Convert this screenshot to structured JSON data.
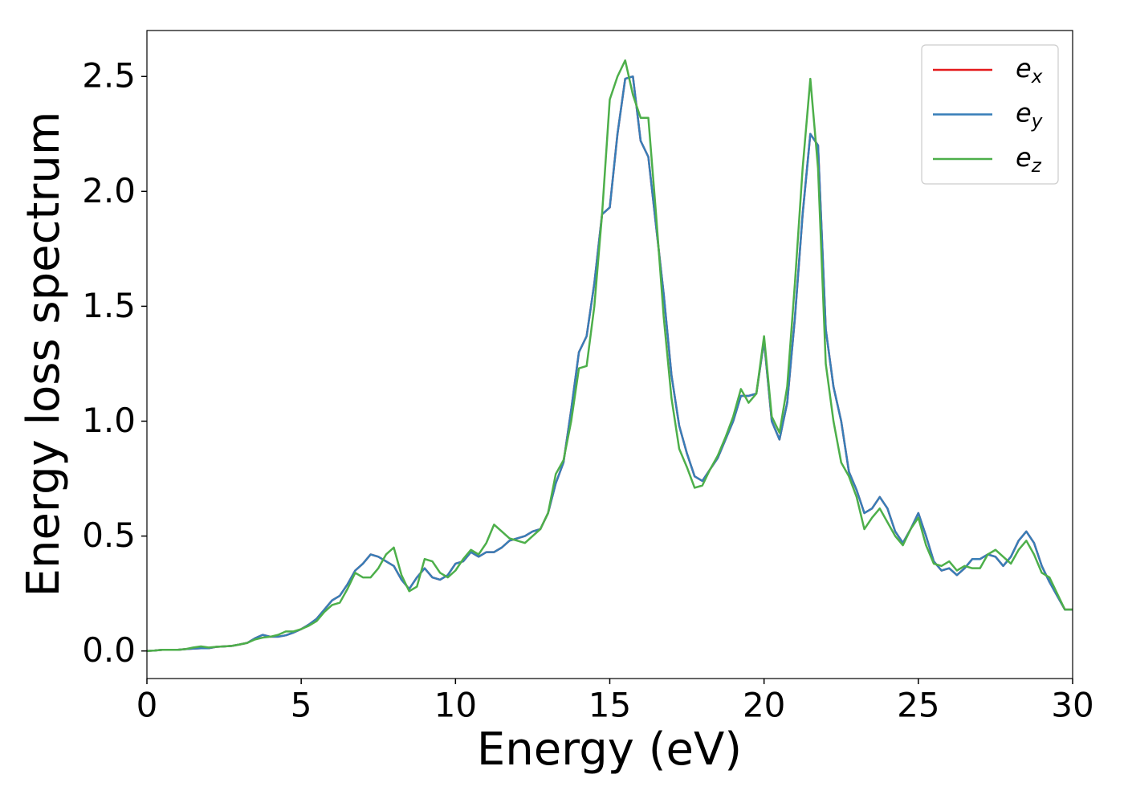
{
  "chart_data": {
    "type": "line",
    "xlabel": "Energy (eV)",
    "ylabel": "Energy loss spectrum",
    "x": [
      0,
      0.25,
      0.5,
      0.75,
      1,
      1.25,
      1.5,
      1.75,
      2,
      2.25,
      2.5,
      2.75,
      3,
      3.25,
      3.5,
      3.75,
      4,
      4.25,
      4.5,
      4.75,
      5,
      5.25,
      5.5,
      5.75,
      6,
      6.25,
      6.5,
      6.75,
      7,
      7.25,
      7.5,
      7.75,
      8,
      8.25,
      8.5,
      8.75,
      9,
      9.25,
      9.5,
      9.75,
      10,
      10.25,
      10.5,
      10.75,
      11,
      11.25,
      11.5,
      11.75,
      12,
      12.25,
      12.5,
      12.75,
      13,
      13.25,
      13.5,
      13.75,
      14,
      14.25,
      14.5,
      14.75,
      15,
      15.25,
      15.5,
      15.75,
      16,
      16.25,
      16.5,
      16.75,
      17,
      17.25,
      17.5,
      17.75,
      18,
      18.25,
      18.5,
      18.75,
      19,
      19.25,
      19.5,
      19.75,
      20,
      20.25,
      20.5,
      20.75,
      21,
      21.25,
      21.5,
      21.75,
      22,
      22.25,
      22.5,
      22.75,
      23,
      23.25,
      23.5,
      23.75,
      24,
      24.25,
      24.5,
      24.75,
      25,
      25.25,
      25.5,
      25.75,
      26,
      26.25,
      26.5,
      26.75,
      27,
      27.25,
      27.5,
      27.75,
      28,
      28.25,
      28.5,
      28.75,
      29,
      29.25,
      29.5,
      29.75,
      30
    ],
    "series": [
      {
        "name": "ex",
        "color": "#e41a1c",
        "values": [
          0,
          0.002,
          0.005,
          0.005,
          0.005,
          0.008,
          0.01,
          0.012,
          0.012,
          0.018,
          0.02,
          0.022,
          0.028,
          0.035,
          0.055,
          0.07,
          0.062,
          0.062,
          0.068,
          0.08,
          0.095,
          0.115,
          0.14,
          0.18,
          0.22,
          0.24,
          0.29,
          0.35,
          0.38,
          0.42,
          0.41,
          0.39,
          0.37,
          0.31,
          0.27,
          0.32,
          0.36,
          0.32,
          0.31,
          0.33,
          0.38,
          0.39,
          0.43,
          0.41,
          0.43,
          0.43,
          0.45,
          0.48,
          0.49,
          0.5,
          0.52,
          0.53,
          0.6,
          0.73,
          0.82,
          1.05,
          1.3,
          1.37,
          1.6,
          1.9,
          1.93,
          2.25,
          2.49,
          2.5,
          2.22,
          2.15,
          1.85,
          1.55,
          1.2,
          0.98,
          0.86,
          0.76,
          0.74,
          0.79,
          0.84,
          0.92,
          1.0,
          1.11,
          1.11,
          1.12,
          1.35,
          1.0,
          0.92,
          1.08,
          1.45,
          1.9,
          2.25,
          2.2,
          1.4,
          1.15,
          1.0,
          0.78,
          0.7,
          0.6,
          0.62,
          0.67,
          0.62,
          0.52,
          0.47,
          0.53,
          0.6,
          0.5,
          0.39,
          0.35,
          0.36,
          0.33,
          0.36,
          0.4,
          0.4,
          0.42,
          0.41,
          0.37,
          0.41,
          0.48,
          0.52,
          0.47,
          0.37,
          0.3,
          0.24,
          0.18,
          0.18
        ]
      },
      {
        "name": "ey",
        "color": "#377eb8",
        "values": [
          0,
          0.002,
          0.005,
          0.005,
          0.005,
          0.008,
          0.01,
          0.012,
          0.012,
          0.018,
          0.02,
          0.022,
          0.028,
          0.035,
          0.055,
          0.07,
          0.062,
          0.062,
          0.068,
          0.08,
          0.095,
          0.115,
          0.14,
          0.18,
          0.22,
          0.24,
          0.29,
          0.35,
          0.38,
          0.42,
          0.41,
          0.39,
          0.37,
          0.31,
          0.27,
          0.32,
          0.36,
          0.32,
          0.31,
          0.33,
          0.38,
          0.39,
          0.43,
          0.41,
          0.43,
          0.43,
          0.45,
          0.48,
          0.49,
          0.5,
          0.52,
          0.53,
          0.6,
          0.73,
          0.82,
          1.05,
          1.3,
          1.37,
          1.6,
          1.9,
          1.93,
          2.25,
          2.49,
          2.5,
          2.22,
          2.15,
          1.85,
          1.55,
          1.2,
          0.98,
          0.86,
          0.76,
          0.74,
          0.79,
          0.84,
          0.92,
          1.0,
          1.11,
          1.11,
          1.12,
          1.35,
          1.0,
          0.92,
          1.08,
          1.45,
          1.9,
          2.25,
          2.2,
          1.4,
          1.15,
          1.0,
          0.78,
          0.7,
          0.6,
          0.62,
          0.67,
          0.62,
          0.52,
          0.47,
          0.53,
          0.6,
          0.5,
          0.39,
          0.35,
          0.36,
          0.33,
          0.36,
          0.4,
          0.4,
          0.42,
          0.41,
          0.37,
          0.41,
          0.48,
          0.52,
          0.47,
          0.37,
          0.3,
          0.24,
          0.18,
          0.18
        ]
      },
      {
        "name": "ez",
        "color": "#4daf4a",
        "values": [
          0,
          0.002,
          0.005,
          0.005,
          0.005,
          0.008,
          0.015,
          0.02,
          0.015,
          0.018,
          0.02,
          0.022,
          0.028,
          0.035,
          0.05,
          0.058,
          0.062,
          0.07,
          0.085,
          0.085,
          0.095,
          0.11,
          0.13,
          0.17,
          0.2,
          0.21,
          0.27,
          0.34,
          0.32,
          0.32,
          0.36,
          0.42,
          0.45,
          0.33,
          0.26,
          0.28,
          0.4,
          0.39,
          0.34,
          0.32,
          0.35,
          0.4,
          0.44,
          0.42,
          0.47,
          0.55,
          0.52,
          0.49,
          0.48,
          0.47,
          0.5,
          0.53,
          0.6,
          0.77,
          0.83,
          1.0,
          1.23,
          1.24,
          1.5,
          1.9,
          2.4,
          2.5,
          2.57,
          2.42,
          2.32,
          2.32,
          1.9,
          1.45,
          1.1,
          0.88,
          0.8,
          0.71,
          0.72,
          0.79,
          0.85,
          0.93,
          1.02,
          1.14,
          1.08,
          1.12,
          1.37,
          1.02,
          0.95,
          1.15,
          1.6,
          2.1,
          2.49,
          2.1,
          1.25,
          1.0,
          0.82,
          0.76,
          0.67,
          0.53,
          0.58,
          0.62,
          0.56,
          0.5,
          0.46,
          0.53,
          0.58,
          0.46,
          0.38,
          0.37,
          0.39,
          0.35,
          0.37,
          0.36,
          0.36,
          0.42,
          0.44,
          0.41,
          0.38,
          0.44,
          0.48,
          0.42,
          0.34,
          0.32,
          0.25,
          0.18,
          0.18
        ]
      }
    ],
    "xlim": [
      0,
      30
    ],
    "xticks": [
      0,
      5,
      10,
      15,
      20,
      25,
      30
    ],
    "ylim": [
      -0.12,
      2.7
    ],
    "yticks": [
      {
        "value": 0,
        "label": "0.0"
      },
      0.5,
      {
        "value": 1,
        "label": "1.0"
      },
      1.5,
      {
        "value": 2,
        "label": "2.0"
      },
      2.5
    ],
    "legend": "upper right",
    "grid": false
  }
}
